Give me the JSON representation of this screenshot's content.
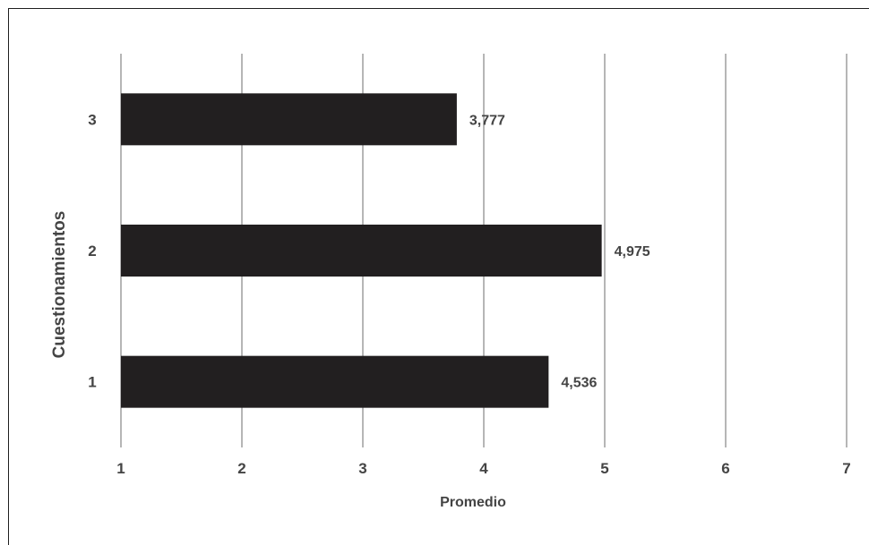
{
  "chart_data": {
    "type": "bar",
    "orientation": "horizontal",
    "categories": [
      "1",
      "2",
      "3"
    ],
    "values": [
      4.536,
      4.975,
      3.777
    ],
    "data_labels": [
      "4,536",
      "4,975",
      "3,777"
    ],
    "xlabel": "Promedio",
    "ylabel": "Cuestionamientos",
    "xlim": [
      1,
      7
    ],
    "x_ticks": [
      "1",
      "2",
      "3",
      "4",
      "5",
      "6",
      "7"
    ],
    "grid": "vertical",
    "legend": "none",
    "bar_color": "#221f20"
  }
}
